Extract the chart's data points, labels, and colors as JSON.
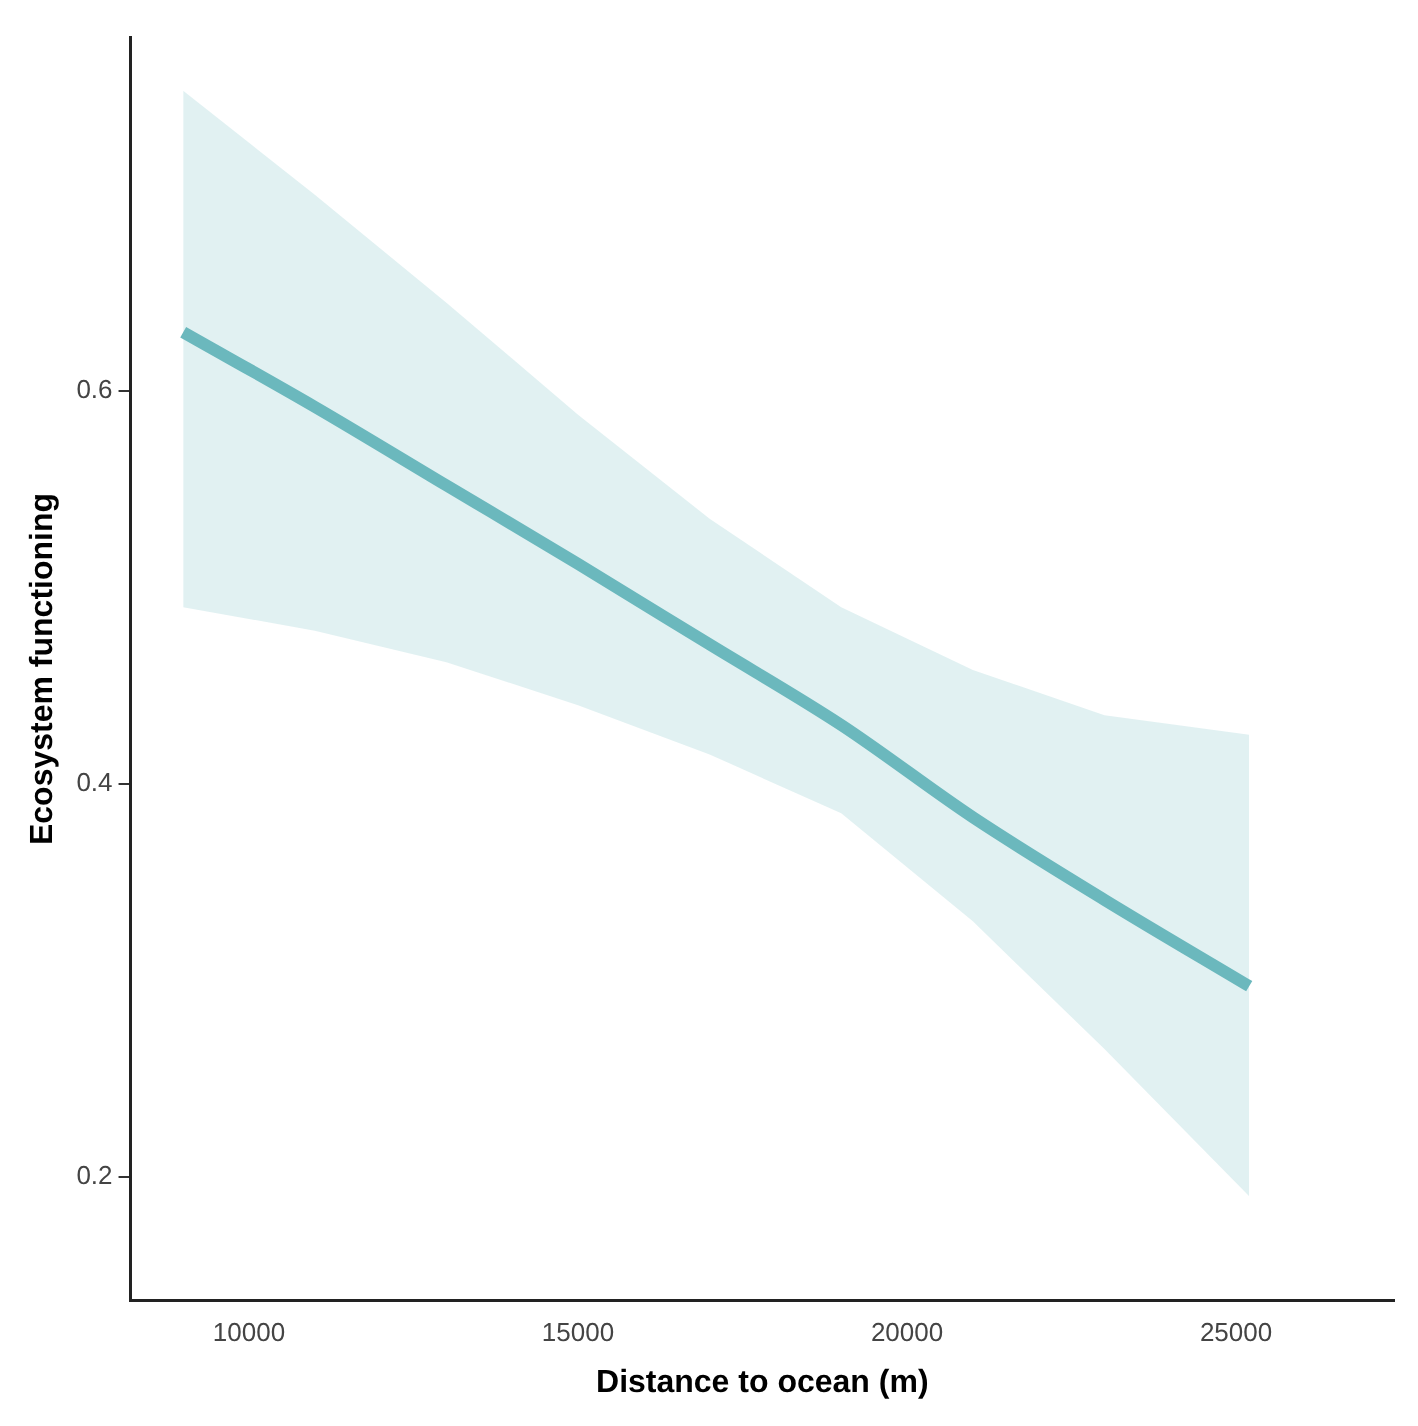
{
  "chart_data": {
    "type": "line",
    "xlabel": "Distance to ocean (m)",
    "ylabel": "Ecosystem functioning",
    "x": [
      9000,
      11000,
      13000,
      15000,
      17000,
      19000,
      21000,
      23000,
      25200
    ],
    "series": [
      {
        "color": "#6bb8bd",
        "values": [
          0.63,
          0.592,
          0.552,
          0.512,
          0.471,
          0.43,
          0.383,
          0.341,
          0.297
        ],
        "lower": [
          0.49,
          0.478,
          0.462,
          0.44,
          0.415,
          0.385,
          0.33,
          0.265,
          0.19
        ],
        "upper": [
          0.753,
          0.7,
          0.645,
          0.588,
          0.535,
          0.49,
          0.458,
          0.435,
          0.425
        ]
      }
    ],
    "xlim": [
      8200,
      27400
    ],
    "ylim": [
      0.137,
      0.78
    ],
    "xticks": [
      10000,
      15000,
      20000,
      25000
    ],
    "yticks": [
      0.2,
      0.4,
      0.6
    ],
    "grid": false,
    "legend": false,
    "marker": "none",
    "line_style": "solid"
  }
}
